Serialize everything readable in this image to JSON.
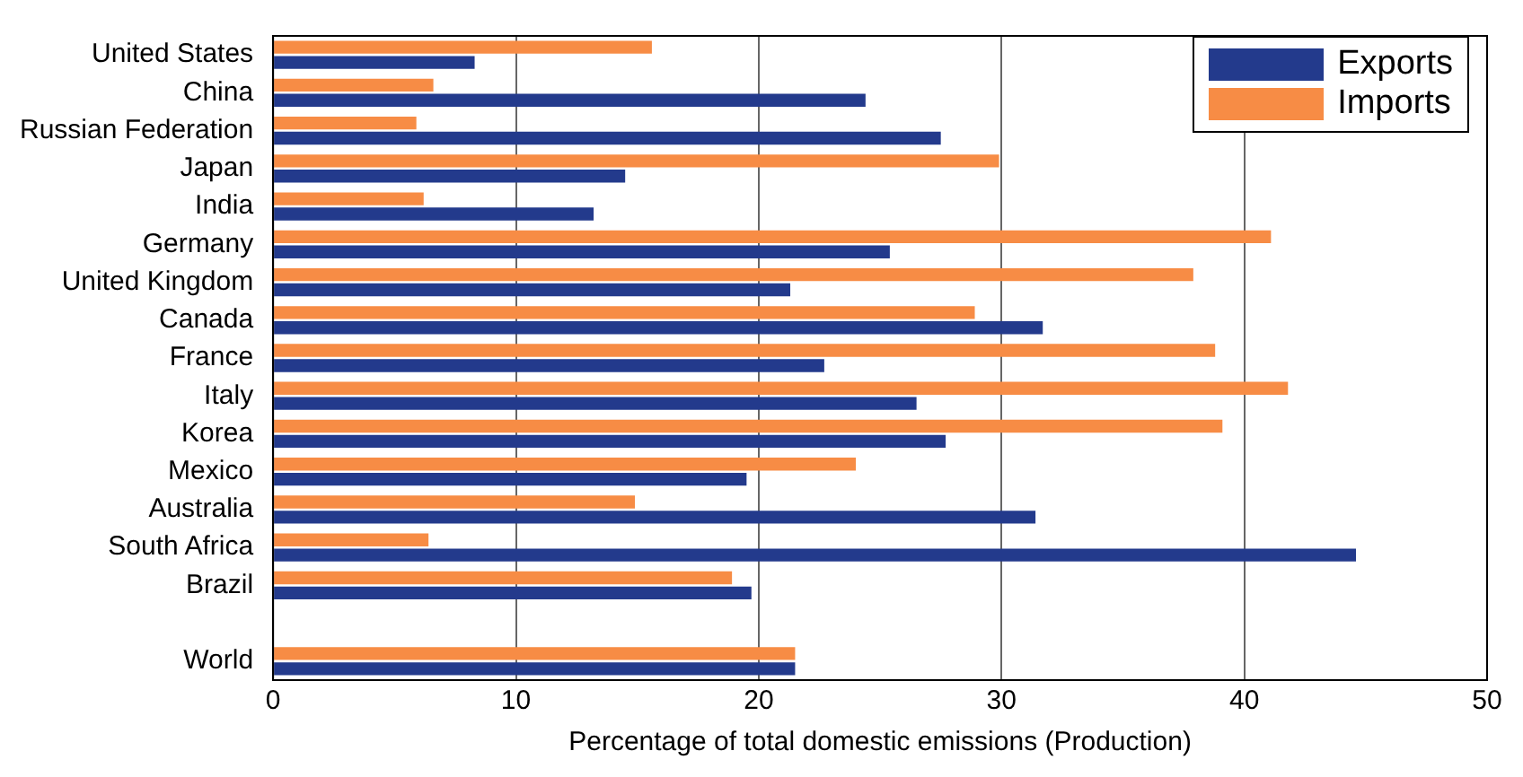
{
  "chart_data": {
    "type": "bar",
    "orientation": "horizontal",
    "xlabel": "Percentage of total domestic emissions (Production)",
    "categories": [
      "United States",
      "China",
      "Russian Federation",
      "Japan",
      "India",
      "Germany",
      "United Kingdom",
      "Canada",
      "France",
      "Italy",
      "Korea",
      "Mexico",
      "Australia",
      "South Africa",
      "Brazil",
      null,
      "World"
    ],
    "series": [
      {
        "name": "Exports",
        "color": "#233a8c",
        "values": [
          8.3,
          24.4,
          27.5,
          14.5,
          13.2,
          25.4,
          21.3,
          31.7,
          22.7,
          26.5,
          27.7,
          19.5,
          31.4,
          44.6,
          19.7,
          null,
          21.5
        ]
      },
      {
        "name": "Imports",
        "color": "#f78c45",
        "values": [
          15.6,
          6.6,
          5.9,
          29.9,
          6.2,
          41.1,
          37.9,
          28.9,
          38.8,
          41.8,
          39.1,
          24.0,
          14.9,
          6.4,
          18.9,
          null,
          21.5
        ]
      }
    ],
    "xlim": [
      0,
      50
    ],
    "xticks": [
      0,
      10,
      20,
      30,
      40,
      50
    ],
    "grid": "x",
    "legend": "top right"
  }
}
